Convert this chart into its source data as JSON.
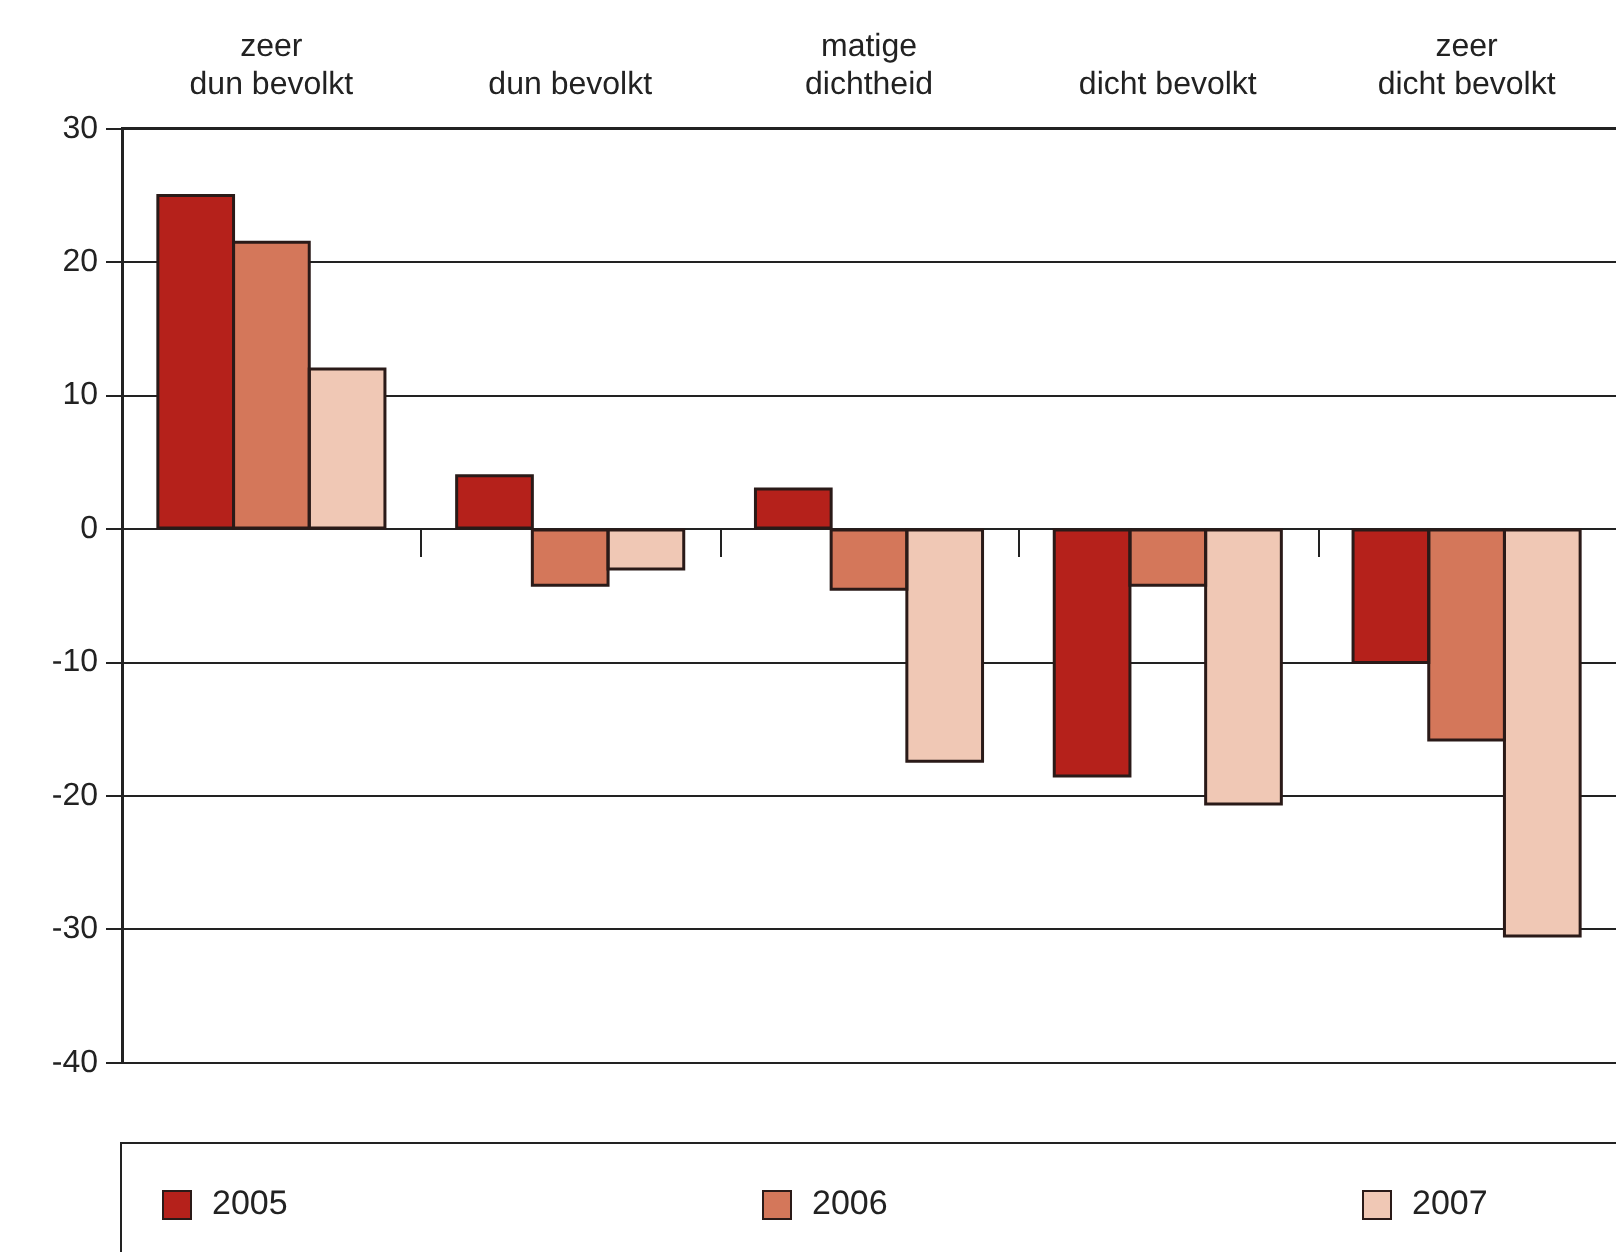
{
  "chart_data": {
    "type": "bar",
    "categories": [
      "zeer dun bevolkt",
      "dun bevolkt",
      "matige dichtheid",
      "dicht bevolkt",
      "zeer dicht bevolkt"
    ],
    "series": [
      {
        "name": "2005",
        "color": "#b5211b",
        "values": [
          25,
          4,
          3,
          -18.5,
          -10
        ]
      },
      {
        "name": "2006",
        "color": "#d4775a",
        "values": [
          21.5,
          -4.2,
          -4.5,
          -4.2,
          -15.8
        ]
      },
      {
        "name": "2007",
        "color": "#f0c8b5",
        "values": [
          12,
          -3,
          -17.4,
          -20.6,
          -30.5
        ]
      }
    ],
    "ylim": [
      -40,
      30
    ],
    "yticks": [
      -40,
      -30,
      -20,
      -10,
      0,
      10,
      20,
      30
    ],
    "grid": "y",
    "legend": "bottom"
  }
}
